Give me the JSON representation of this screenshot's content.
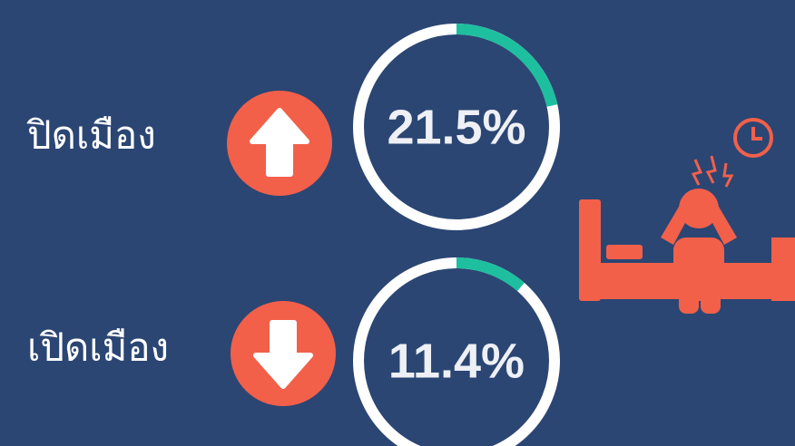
{
  "chart_data": [
    {
      "type": "donut",
      "title": "ปิดเมือง",
      "values": [
        21.5
      ],
      "value_labels": [
        "21.5%"
      ],
      "ylim": [
        0,
        100
      ],
      "color": "#1dbf9f",
      "track_color": "#ffffff"
    },
    {
      "type": "donut",
      "title": "เปิดเมือง",
      "values": [
        11.4
      ],
      "value_labels": [
        "11.4%"
      ],
      "ylim": [
        0,
        100
      ],
      "color": "#1dbf9f",
      "track_color": "#ffffff"
    }
  ]
}
